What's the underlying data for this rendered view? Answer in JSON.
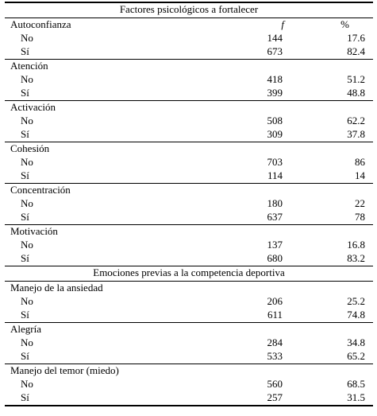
{
  "table": {
    "section1_title": "Factores psicológicos a fortalecer",
    "section2_title": "Emociones previas a la competencia deportiva",
    "col_f": "f",
    "col_pct": "%",
    "groups1": [
      {
        "label": "Autoconfianza",
        "rows": [
          {
            "label": "No",
            "f": "144",
            "pct": "17.6"
          },
          {
            "label": "Sí",
            "f": "673",
            "pct": "82.4"
          }
        ]
      },
      {
        "label": "Atención",
        "rows": [
          {
            "label": "No",
            "f": "418",
            "pct": "51.2"
          },
          {
            "label": "Sí",
            "f": "399",
            "pct": "48.8"
          }
        ]
      },
      {
        "label": "Activación",
        "rows": [
          {
            "label": "No",
            "f": "508",
            "pct": "62.2"
          },
          {
            "label": "Sí",
            "f": "309",
            "pct": "37.8"
          }
        ]
      },
      {
        "label": "Cohesión",
        "rows": [
          {
            "label": "No",
            "f": "703",
            "pct": "86"
          },
          {
            "label": "Sí",
            "f": "114",
            "pct": "14"
          }
        ]
      },
      {
        "label": "Concentración",
        "rows": [
          {
            "label": "No",
            "f": "180",
            "pct": "22"
          },
          {
            "label": "Sí",
            "f": "637",
            "pct": "78"
          }
        ]
      },
      {
        "label": "Motivación",
        "rows": [
          {
            "label": "No",
            "f": "137",
            "pct": "16.8"
          },
          {
            "label": "Sí",
            "f": "680",
            "pct": "83.2"
          }
        ]
      }
    ],
    "groups2": [
      {
        "label": "Manejo de la ansiedad",
        "rows": [
          {
            "label": "No",
            "f": "206",
            "pct": "25.2"
          },
          {
            "label": "Sí",
            "f": "611",
            "pct": "74.8"
          }
        ]
      },
      {
        "label": "Alegría",
        "rows": [
          {
            "label": "No",
            "f": "284",
            "pct": "34.8"
          },
          {
            "label": "Sí",
            "f": "533",
            "pct": "65.2"
          }
        ]
      },
      {
        "label": "Manejo del temor (miedo)",
        "rows": [
          {
            "label": "No",
            "f": "560",
            "pct": "68.5"
          },
          {
            "label": "Sí",
            "f": "257",
            "pct": "31.5"
          }
        ]
      }
    ]
  }
}
